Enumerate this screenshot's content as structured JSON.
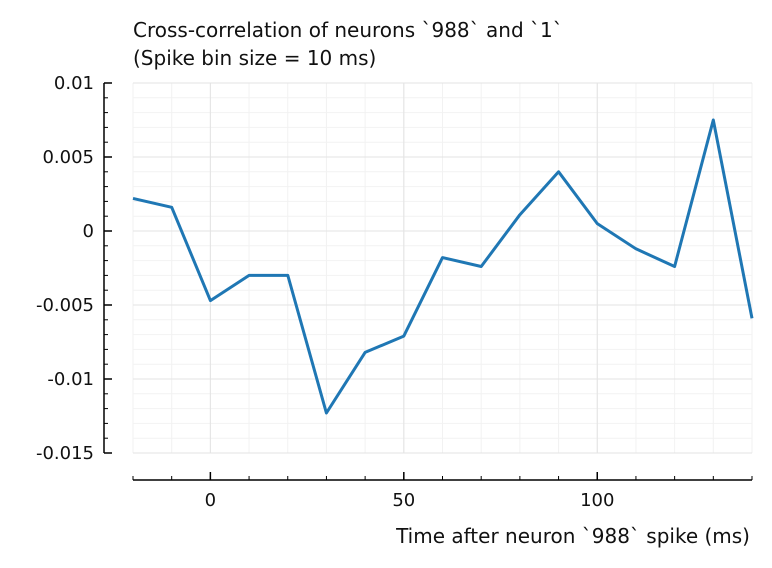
{
  "chart_data": {
    "type": "line",
    "title_lines": [
      "Cross-correlation of neurons `988` and `1`",
      "(Spike bin size = 10 ms)"
    ],
    "xlabel": "Time after neuron `988` spike (ms)",
    "ylabel": "",
    "xlim": [
      -20,
      140
    ],
    "ylim": [
      -0.015,
      0.01
    ],
    "x_ticks": [
      0,
      50,
      100
    ],
    "x_tick_labels": [
      "0",
      "50",
      "100"
    ],
    "y_ticks": [
      0.01,
      0.005,
      0,
      -0.005,
      -0.01,
      -0.015
    ],
    "y_tick_labels": [
      "0.01",
      "0.005",
      "0",
      "-0.005",
      "-0.01",
      "-0.015"
    ],
    "grid": true,
    "series": [
      {
        "color": "#1f77b4",
        "x": [
          -20,
          -10,
          0,
          10,
          20,
          30,
          40,
          50,
          60,
          70,
          80,
          90,
          100,
          110,
          120,
          130,
          140
        ],
        "y": [
          0.0022,
          0.0016,
          -0.0047,
          -0.003,
          -0.003,
          -0.0123,
          -0.0082,
          -0.0071,
          -0.0018,
          -0.0024,
          0.0011,
          0.004,
          0.0005,
          -0.0012,
          -0.0024,
          0.0075,
          -0.0059
        ]
      }
    ]
  }
}
